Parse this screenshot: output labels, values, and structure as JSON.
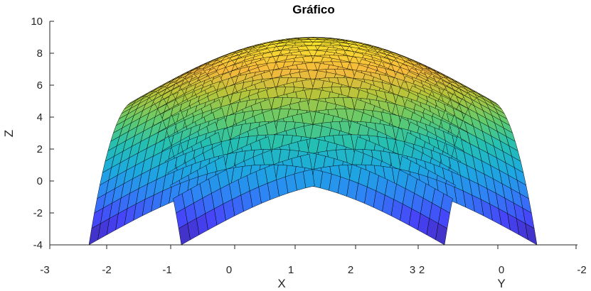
{
  "chart_data": {
    "type": "surface",
    "title": "Gráfico",
    "xlabel": "X",
    "ylabel": "Y",
    "zlabel": "Z",
    "zlim": [
      -4,
      10
    ],
    "z_ticks": [
      "10",
      "8",
      "6",
      "4",
      "2",
      "0",
      "-2",
      "-4"
    ],
    "x_ticks": [
      "-3",
      "-2",
      "-1",
      "0",
      "1",
      "2",
      "3"
    ],
    "y_ticks": [
      "2",
      "0",
      "-2"
    ],
    "grid": false,
    "colormap": [
      "#3e26a8",
      "#4743f8",
      "#2f82f6",
      "#1caadf",
      "#24bfb3",
      "#60cb6d",
      "#b4c53a",
      "#f6b93c",
      "#f8de2e",
      "#f9fb15"
    ],
    "edge_color": "#000000"
  }
}
